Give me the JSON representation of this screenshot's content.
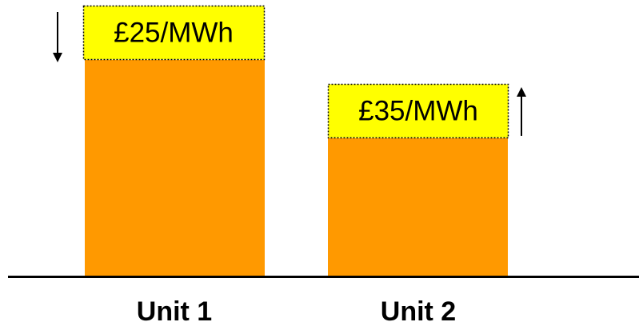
{
  "units": [
    {
      "name": "Unit 1",
      "price": "£25/MWh"
    },
    {
      "name": "Unit 2",
      "price": "£35/MWh"
    }
  ]
}
